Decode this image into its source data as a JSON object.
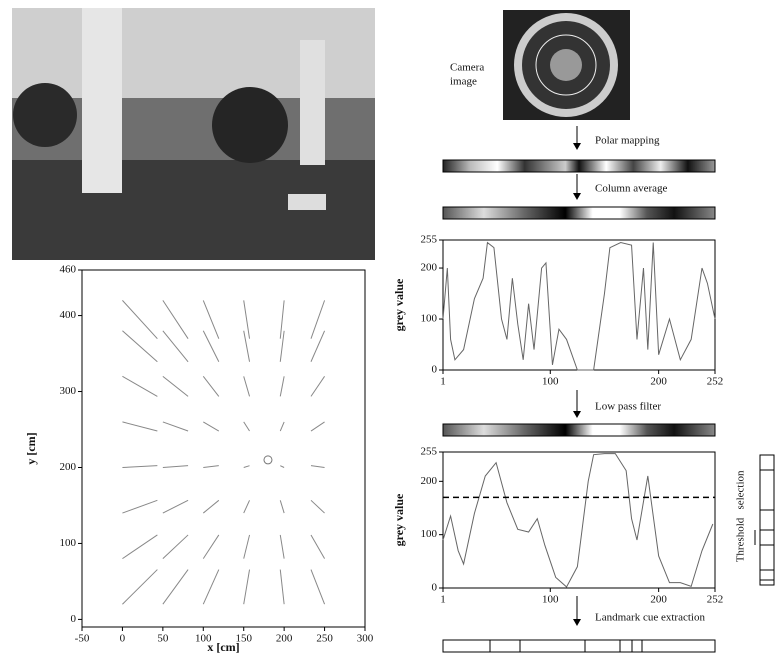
{
  "chart_data": [
    {
      "type": "quiver",
      "xlabel": "x [cm]",
      "ylabel": "y [cm]",
      "xlim": [
        -50,
        300
      ],
      "ylim": [
        -10,
        460
      ],
      "xticks": [
        -50,
        0,
        50,
        100,
        150,
        200,
        250,
        300
      ],
      "yticks": [
        0,
        100,
        200,
        300,
        400,
        460
      ],
      "home": [
        180,
        210
      ],
      "x": [
        0,
        50,
        100,
        150,
        200,
        250,
        0,
        50,
        100,
        150,
        200,
        250,
        0,
        50,
        100,
        150,
        200,
        250,
        0,
        50,
        100,
        150,
        200,
        250,
        0,
        50,
        100,
        150,
        200,
        250,
        0,
        50,
        100,
        150,
        200,
        250,
        0,
        50,
        100,
        150,
        200,
        250,
        0,
        50,
        100,
        150,
        200,
        250
      ],
      "y": [
        20,
        20,
        20,
        20,
        20,
        20,
        80,
        80,
        80,
        80,
        80,
        80,
        140,
        140,
        140,
        140,
        140,
        140,
        200,
        200,
        200,
        200,
        200,
        200,
        260,
        260,
        260,
        260,
        260,
        260,
        320,
        320,
        320,
        320,
        320,
        320,
        380,
        380,
        380,
        380,
        380,
        380,
        420,
        420,
        420,
        420,
        420,
        420
      ],
      "u": [
        54,
        39,
        24,
        9,
        -6,
        -21,
        54,
        39,
        24,
        9,
        -6,
        -21,
        54,
        39,
        24,
        9,
        -6,
        -21,
        54,
        39,
        24,
        9,
        -6,
        -21,
        54,
        39,
        24,
        9,
        -6,
        -21,
        54,
        39,
        24,
        9,
        -6,
        -21,
        54,
        39,
        24,
        9,
        -6,
        -21,
        54,
        39,
        24,
        9,
        -6,
        -21
      ],
      "v": [
        57,
        57,
        57,
        57,
        57,
        57,
        39,
        39,
        39,
        39,
        39,
        39,
        21,
        21,
        21,
        21,
        21,
        21,
        3,
        3,
        3,
        3,
        3,
        3,
        -15,
        -15,
        -15,
        -15,
        -15,
        -15,
        -33,
        -33,
        -33,
        -33,
        -33,
        -33,
        -51,
        -51,
        -51,
        -51,
        -51,
        -51,
        -63,
        -63,
        -63,
        -63,
        -63,
        -63
      ]
    },
    {
      "type": "line",
      "ylabel": "grey value",
      "xlim": [
        1,
        252
      ],
      "ylim": [
        0,
        255
      ],
      "xticks": [
        1,
        100,
        200,
        252
      ],
      "yticks": [
        0,
        100,
        200,
        255
      ],
      "x": [
        1,
        5,
        8,
        12,
        20,
        30,
        38,
        42,
        48,
        55,
        60,
        65,
        70,
        75,
        80,
        85,
        92,
        96,
        102,
        108,
        115,
        125,
        140,
        150,
        155,
        165,
        175,
        180,
        186,
        190,
        195,
        200,
        210,
        220,
        230,
        240,
        245,
        252
      ],
      "values": [
        100,
        200,
        60,
        20,
        40,
        140,
        180,
        250,
        240,
        100,
        60,
        180,
        90,
        20,
        130,
        40,
        200,
        210,
        10,
        80,
        60,
        0,
        0,
        150,
        240,
        250,
        245,
        60,
        200,
        40,
        250,
        30,
        100,
        20,
        60,
        200,
        170,
        100
      ]
    },
    {
      "type": "line",
      "ylabel": "grey value",
      "xlim": [
        1,
        252
      ],
      "ylim": [
        0,
        255
      ],
      "xticks": [
        1,
        100,
        200,
        252
      ],
      "yticks": [
        0,
        100,
        200,
        255
      ],
      "threshold": 170,
      "x": [
        1,
        8,
        15,
        20,
        30,
        40,
        50,
        60,
        70,
        80,
        88,
        95,
        105,
        115,
        125,
        135,
        140,
        150,
        160,
        170,
        175,
        180,
        190,
        200,
        210,
        220,
        230,
        240,
        250
      ],
      "values": [
        90,
        135,
        70,
        45,
        140,
        210,
        235,
        160,
        110,
        105,
        130,
        80,
        20,
        2,
        40,
        200,
        250,
        252,
        252,
        220,
        130,
        90,
        210,
        60,
        10,
        10,
        3,
        70,
        120
      ]
    }
  ],
  "pipeline": {
    "camera_label": [
      "Camera",
      "image"
    ],
    "steps": [
      "Polar mapping",
      "Column average",
      "Low pass filter",
      "Landmark cue extraction"
    ],
    "side": [
      "Threshold",
      "selection"
    ]
  }
}
